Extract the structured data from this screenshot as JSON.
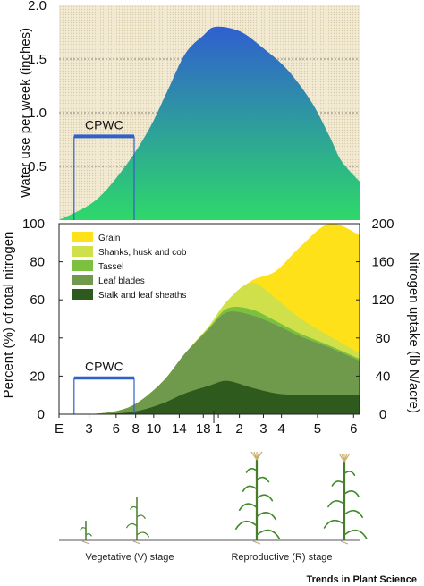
{
  "chart_data": [
    {
      "type": "area",
      "title": "",
      "ylabel": "Water use per week (inches)",
      "ylim": [
        0,
        2.0
      ],
      "yticks": [
        "2.0",
        "1.5",
        "1.0",
        "0.5"
      ],
      "yticks_values": [
        2.0,
        1.5,
        1.0,
        0.5
      ],
      "background": "grid",
      "x": [
        0,
        0.12,
        0.22,
        0.3,
        0.36,
        0.42,
        0.48,
        0.52,
        0.6,
        0.68,
        0.76,
        0.84,
        0.9,
        0.94,
        1.0
      ],
      "values": [
        0.0,
        0.18,
        0.5,
        0.85,
        1.2,
        1.55,
        1.72,
        1.8,
        1.76,
        1.6,
        1.4,
        1.1,
        0.78,
        0.55,
        0.36
      ],
      "colors": {
        "top": "#2f5fd0",
        "bottom": "#2ed86a"
      },
      "annotation": {
        "text": "CPWC",
        "x": [
          0.05,
          0.25
        ],
        "y": 0.78,
        "color": "#3060c8"
      }
    },
    {
      "type": "area",
      "stacked": true,
      "title": "",
      "ylabel": "Percent (%) of total nitrogen",
      "ylabel_right": "Nitrogen uptake (lb N/acre)",
      "ylim": [
        0,
        100
      ],
      "ylim_right": [
        0,
        200
      ],
      "yticks": [
        "100",
        "80",
        "60",
        "40",
        "20",
        "0"
      ],
      "yticks_values": [
        100,
        80,
        60,
        40,
        20,
        0
      ],
      "yticks_right": [
        "200",
        "160",
        "120",
        "80",
        "40",
        "0"
      ],
      "yticks_right_values": [
        200,
        160,
        120,
        80,
        40,
        0
      ],
      "xticks": [
        "E",
        "3",
        "6",
        "8",
        "10",
        "14",
        "18",
        "1",
        "2",
        "3",
        "4",
        "5",
        "6"
      ],
      "x": [
        0,
        0.1,
        0.2,
        0.27,
        0.35,
        0.42,
        0.5,
        0.56,
        0.64,
        0.72,
        0.8,
        0.9,
        1.0
      ],
      "series": [
        {
          "name": "Stalk and leaf sheaths",
          "color": "#2e5a1e",
          "values": [
            0,
            0,
            0.5,
            2,
            6,
            11,
            15,
            17.5,
            14,
            11,
            10,
            10,
            10
          ]
        },
        {
          "name": "Leaf blades",
          "color": "#6f9a4c",
          "values": [
            0,
            0,
            1.5,
            5,
            12,
            21,
            30,
            36,
            38,
            36,
            31,
            25,
            18
          ]
        },
        {
          "name": "Tassel",
          "color": "#7cc040",
          "values": [
            0,
            0,
            0,
            0,
            0,
            0,
            0.5,
            2,
            3,
            2,
            1.5,
            1,
            1
          ]
        },
        {
          "name": "Shanks, husk and cob",
          "color": "#cfe04a",
          "values": [
            0,
            0,
            0,
            0,
            0,
            0,
            1,
            4,
            14,
            12,
            8,
            5,
            3
          ]
        },
        {
          "name": "Grain",
          "color": "#ffe11a",
          "values": [
            0,
            0,
            0,
            0,
            0,
            0,
            0,
            0,
            1,
            14,
            37,
            59,
            62
          ]
        }
      ],
      "legend": "top-left",
      "annotation": {
        "text": "CPWC",
        "x": [
          0.05,
          0.25
        ],
        "y": 19,
        "color": "#3060c8"
      }
    }
  ],
  "stages": {
    "vegetative": "Vegetative (V) stage",
    "reproductive": "Reproductive (R) stage"
  },
  "credit": "Trends in Plant Science"
}
